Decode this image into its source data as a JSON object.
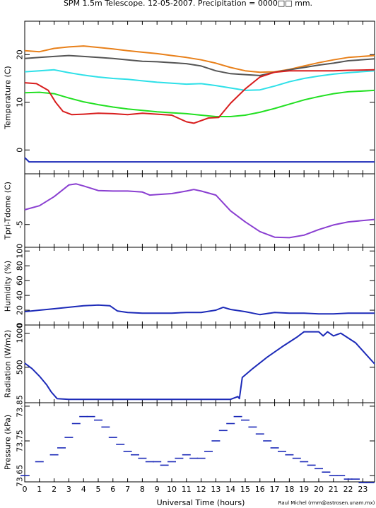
{
  "header": {
    "title": "SPM 1.5m Telescope. 12-05-2007. Precipitation = 0000□□ mm."
  },
  "footer": {
    "xlabel": "Universal Time (hours)",
    "credit": "Raul Michel (rmm@astrosen.unam.mx)"
  },
  "chart_data": [
    {
      "type": "line",
      "ylabel": "Temperature (C)",
      "ylim": [
        -5,
        27
      ],
      "yticks": [
        0,
        10,
        20
      ],
      "xlim": [
        0,
        23.8
      ],
      "series": [
        {
          "color": "#e8801a",
          "x": [
            0,
            1,
            2,
            3,
            4,
            5,
            6,
            7,
            8,
            9,
            10,
            11,
            12,
            13,
            14,
            15,
            16,
            17,
            18,
            19,
            20,
            21,
            22,
            23.8
          ],
          "y": [
            20.8,
            20.6,
            21.3,
            21.6,
            21.8,
            21.5,
            21.2,
            20.8,
            20.5,
            20.2,
            19.8,
            19.4,
            18.9,
            18.2,
            17.3,
            16.6,
            16.3,
            16.4,
            16.9,
            17.6,
            18.3,
            18.9,
            19.4,
            19.8
          ]
        },
        {
          "color": "#555555",
          "x": [
            0,
            1,
            2,
            3,
            4,
            5,
            6,
            7,
            8,
            9,
            10,
            11,
            12,
            13,
            14,
            15,
            16,
            17,
            18,
            19,
            20,
            21,
            22,
            23.8
          ],
          "y": [
            19.2,
            19.4,
            19.6,
            19.8,
            19.6,
            19.4,
            19.2,
            18.9,
            18.6,
            18.5,
            18.3,
            18.1,
            17.6,
            16.6,
            16.0,
            15.8,
            15.6,
            16.3,
            16.8,
            17.3,
            17.8,
            18.2,
            18.7,
            19.1
          ]
        },
        {
          "color": "#2ee0e8",
          "x": [
            0,
            1,
            2,
            3,
            4,
            5,
            6,
            7,
            8,
            9,
            10,
            11,
            12,
            13,
            14,
            15,
            16,
            17,
            18,
            19,
            20,
            21,
            22,
            23.8
          ],
          "y": [
            16.4,
            16.6,
            16.8,
            16.2,
            15.7,
            15.3,
            15.0,
            14.8,
            14.5,
            14.2,
            14.0,
            13.8,
            13.9,
            13.5,
            13.0,
            12.5,
            12.6,
            13.4,
            14.3,
            15.0,
            15.5,
            15.9,
            16.2,
            16.6
          ]
        },
        {
          "color": "#22e022",
          "x": [
            0,
            1,
            2,
            3,
            4,
            5,
            6,
            7,
            8,
            9,
            10,
            11,
            12,
            13,
            14,
            15,
            16,
            17,
            18,
            19,
            20,
            21,
            22,
            23.8
          ],
          "y": [
            12.0,
            12.1,
            11.8,
            10.9,
            10.1,
            9.5,
            9.0,
            8.6,
            8.3,
            8.0,
            7.8,
            7.6,
            7.3,
            7.0,
            7.0,
            7.3,
            7.9,
            8.7,
            9.6,
            10.5,
            11.2,
            11.8,
            12.2,
            12.5
          ]
        },
        {
          "color": "#d81e1e",
          "x": [
            0,
            0.8,
            1.6,
            2.1,
            2.6,
            3.2,
            4,
            5,
            6,
            7,
            8,
            9,
            10,
            11,
            11.5,
            12.5,
            13.2,
            14,
            15,
            16,
            17,
            18,
            19,
            20,
            21,
            22,
            23.8
          ],
          "y": [
            14.1,
            13.9,
            12.5,
            10.0,
            8.1,
            7.4,
            7.5,
            7.7,
            7.6,
            7.4,
            7.7,
            7.5,
            7.3,
            5.9,
            5.6,
            6.7,
            6.8,
            9.8,
            12.8,
            15.3,
            16.3,
            16.6,
            16.6,
            16.6,
            16.6,
            16.7,
            16.8
          ]
        },
        {
          "color": "#1c2ab8",
          "x": [
            0,
            0.3,
            23.8
          ],
          "y": [
            -1.6,
            -2.5,
            -2.5
          ]
        }
      ]
    },
    {
      "type": "line",
      "ylabel": "Tpri-Tdome (C)",
      "ylim": [
        -9.5,
        5
      ],
      "yticks": [
        -5
      ],
      "xlim": [
        0,
        23.8
      ],
      "series": [
        {
          "color": "#8a3fd1",
          "x": [
            0,
            1,
            2,
            3,
            3.5,
            4,
            5,
            6,
            7,
            8,
            8.5,
            9,
            10,
            11,
            11.5,
            12,
            13,
            14,
            15,
            16,
            17,
            18,
            19,
            20,
            21,
            22,
            23.8
          ],
          "y": [
            -2.1,
            -1.3,
            0.5,
            2.8,
            3.0,
            2.6,
            1.7,
            1.6,
            1.6,
            1.4,
            0.8,
            0.9,
            1.1,
            1.6,
            1.9,
            1.6,
            0.8,
            -2.3,
            -4.5,
            -6.4,
            -7.5,
            -7.6,
            -7.1,
            -6.0,
            -5.1,
            -4.5,
            -4.0
          ]
        }
      ]
    },
    {
      "type": "line",
      "ylabel": "Humidity (%)",
      "ylim": [
        0,
        105
      ],
      "yticks": [
        0,
        20,
        40,
        60,
        80,
        100
      ],
      "xlim": [
        0,
        23.8
      ],
      "series": [
        {
          "color": "#1c2ab8",
          "x": [
            0,
            1,
            2,
            3,
            4,
            5,
            5.8,
            6.3,
            7,
            8,
            9,
            10,
            11,
            12,
            13,
            13.5,
            14,
            15,
            15.5,
            16,
            17,
            18,
            19,
            20,
            21,
            22,
            23.8
          ],
          "y": [
            18,
            20,
            22,
            24,
            26,
            27,
            26,
            19,
            17,
            16,
            16,
            16,
            17,
            17,
            20,
            24,
            21,
            18,
            16,
            14,
            17,
            16,
            16,
            15,
            15,
            16,
            16
          ]
        }
      ]
    },
    {
      "type": "line",
      "ylabel": "Radiation (W/m2)",
      "ylim": [
        -20,
        1120
      ],
      "yticks": [
        500,
        1000
      ],
      "xlim": [
        0,
        23.8
      ],
      "series": [
        {
          "color": "#1c2ab8",
          "x": [
            0,
            0.5,
            1,
            1.5,
            1.8,
            2.2,
            3,
            5,
            8,
            11,
            14,
            14.5,
            14.6,
            14.8,
            15.5,
            16.5,
            17.5,
            18.5,
            19,
            20,
            20.3,
            20.6,
            21,
            21.5,
            22.5,
            23.8
          ],
          "y": [
            560,
            480,
            370,
            240,
            140,
            40,
            30,
            30,
            30,
            30,
            30,
            70,
            40,
            350,
            480,
            650,
            800,
            940,
            1020,
            1020,
            960,
            1020,
            960,
            1000,
            860,
            550
          ]
        }
      ]
    },
    {
      "type": "scatter",
      "ylabel": "Pressure (kPa)",
      "ylim": [
        73.632,
        73.86
      ],
      "yticks": [
        73.65,
        73.75,
        73.85
      ],
      "xlim": [
        0,
        23.8
      ],
      "series": [
        {
          "color": "#1c2ab8",
          "x": [
            0,
            1,
            2,
            2.5,
            3,
            3.5,
            4,
            4.5,
            5,
            5.5,
            6,
            6.5,
            7,
            7.5,
            8,
            8.5,
            9,
            9.5,
            10,
            10.5,
            11,
            11.5,
            12,
            12.5,
            13,
            13.5,
            14,
            14.5,
            15,
            15.5,
            16,
            16.5,
            17,
            17.5,
            18,
            18.5,
            19,
            19.5,
            20,
            20.5,
            21,
            21.5,
            22,
            22.5,
            23,
            23.5
          ],
          "y": [
            73.65,
            73.69,
            73.71,
            73.73,
            73.76,
            73.8,
            73.82,
            73.82,
            73.81,
            73.79,
            73.76,
            73.74,
            73.72,
            73.71,
            73.7,
            73.69,
            73.69,
            73.68,
            73.69,
            73.7,
            73.71,
            73.7,
            73.7,
            73.72,
            73.75,
            73.78,
            73.8,
            73.82,
            73.81,
            73.79,
            73.77,
            73.75,
            73.73,
            73.72,
            73.71,
            73.7,
            73.69,
            73.68,
            73.67,
            73.66,
            73.65,
            73.65,
            73.64,
            73.64,
            73.63,
            73.63
          ]
        }
      ]
    }
  ],
  "xaxis": {
    "ticks": [
      "0",
      "1",
      "2",
      "3",
      "4",
      "5",
      "6",
      "7",
      "8",
      "9",
      "10",
      "11",
      "12",
      "13",
      "14",
      "15",
      "16",
      "17",
      "18",
      "19",
      "20",
      "21",
      "22",
      "23"
    ]
  }
}
